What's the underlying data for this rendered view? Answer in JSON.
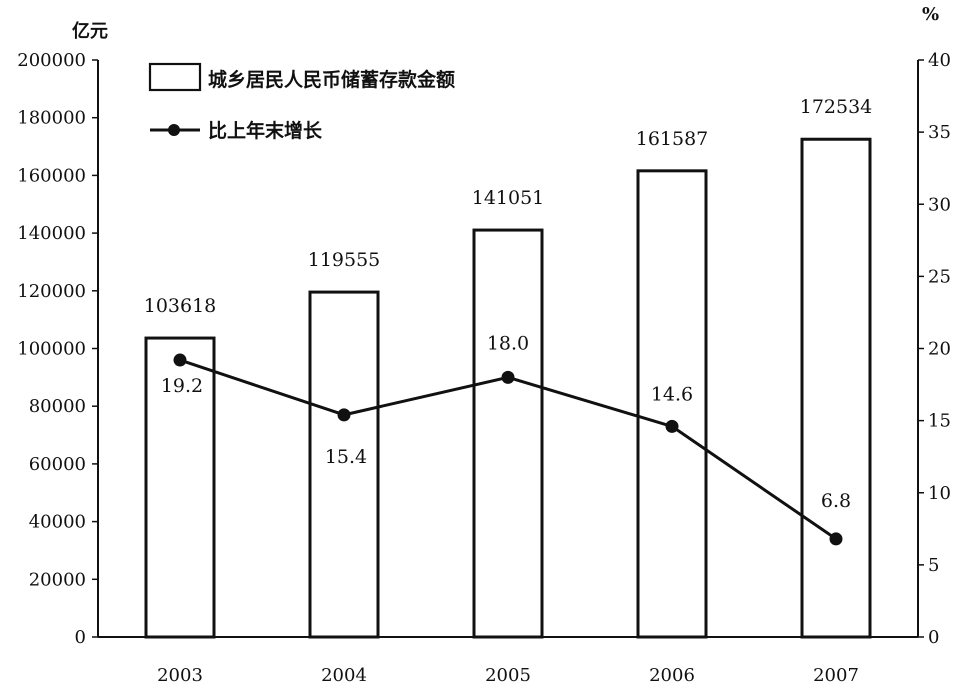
{
  "chart_data": {
    "type": "bar",
    "categories": [
      "2003",
      "2004",
      "2005",
      "2006",
      "2007"
    ],
    "series": [
      {
        "name": "城乡居民人民币储蓄存款金额",
        "type": "bar",
        "axis": "left",
        "values": [
          103618,
          119555,
          141051,
          161587,
          172534
        ],
        "labels": [
          "103618",
          "119555",
          "141051",
          "161587",
          "172534"
        ]
      },
      {
        "name": "比上年末增长",
        "type": "line",
        "axis": "right",
        "values": [
          19.2,
          15.4,
          18.0,
          14.6,
          6.8
        ],
        "labels": [
          "19.2",
          "15.4",
          "18.0",
          "14.6",
          "6.8"
        ]
      }
    ],
    "y_left": {
      "unit": "亿元",
      "ylim": [
        0,
        200000
      ],
      "ticks": [
        "0",
        "20000",
        "40000",
        "60000",
        "80000",
        "100000",
        "120000",
        "140000",
        "160000",
        "180000",
        "200000"
      ]
    },
    "y_right": {
      "unit": "%",
      "ylim": [
        0,
        40
      ],
      "ticks": [
        "0",
        "5",
        "10",
        "15",
        "20",
        "25",
        "30",
        "35",
        "40"
      ]
    },
    "legend": "top-left",
    "grid": false,
    "colors": {
      "bar_fill": "#ffffff",
      "bar_stroke": "#111111",
      "line": "#111111"
    }
  }
}
